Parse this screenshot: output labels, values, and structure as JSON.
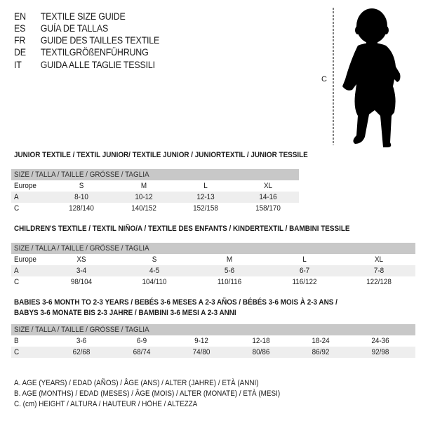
{
  "header": {
    "rows": [
      {
        "code": "EN",
        "title": "TEXTILE SIZE GUIDE"
      },
      {
        "code": "ES",
        "title": "GUÍA DE TALLAS"
      },
      {
        "code": "FR",
        "title": "GUIDE DES TAILLES TEXTILE"
      },
      {
        "code": "DE",
        "title": "TEXTILGRÖßENFÜHRUNG"
      },
      {
        "code": "IT",
        "title": "GUIDA ALLE TAGLIE TESSILI"
      }
    ]
  },
  "illustration": {
    "measure_label": "C",
    "icon": "baby-silhouette"
  },
  "tables": [
    {
      "title": "JUNIOR TEXTILE / TEXTIL JUNIOR/ TEXTILE JUNIOR / JUNIORTEXTIL / JUNIOR TESSILE",
      "title2": "",
      "header": "SIZE / TALLA / TAILLE / GRÖSSE / TAGLIA",
      "rows": [
        {
          "label": "Europe",
          "values": [
            "S",
            "M",
            "L",
            "XL"
          ]
        },
        {
          "label": "A",
          "values": [
            "8-10",
            "10-12",
            "12-13",
            "14-16"
          ]
        },
        {
          "label": "C",
          "values": [
            "128/140",
            "140/152",
            "152/158",
            "158/170"
          ]
        }
      ]
    },
    {
      "title": "CHILDREN'S TEXTILE / TEXTIL NIÑO/A / TEXTILE DES ENFANTS / KINDERTEXTIL / BAMBINI TESSILE",
      "title2": "",
      "header": "SIZE / TALLA / TAILLE / GRÖSSE / TAGLIA",
      "rows": [
        {
          "label": "Europe",
          "values": [
            "XS",
            "S",
            "M",
            "L",
            "XL"
          ]
        },
        {
          "label": "A",
          "values": [
            "3-4",
            "4-5",
            "5-6",
            "6-7",
            "7-8"
          ]
        },
        {
          "label": "C",
          "values": [
            "98/104",
            "104/110",
            "110/116",
            "116/122",
            "122/128"
          ]
        }
      ]
    },
    {
      "title": "BABIES 3-6 MONTH TO 2-3 YEARS / BEBÉS 3-6 MESES A 2-3 AÑOS / BÉBÉS 3-6 MOIS À 2-3 ANS /",
      "title2": "BABYS 3-6 MONATE BIS 2-3 JAHRE / BAMBINI 3-6 MESI A 2-3 ANNI",
      "header": "SIZE / TALLA / TAILLE / GRÖSSE / TAGLIA",
      "rows": [
        {
          "label": "B",
          "values": [
            "3-6",
            "6-9",
            "9-12",
            "12-18",
            "18-24",
            "24-36"
          ]
        },
        {
          "label": "C",
          "values": [
            "62/68",
            "68/74",
            "74/80",
            "80/86",
            "86/92",
            "92/98"
          ]
        }
      ]
    }
  ],
  "legend": [
    "A. AGE (YEARS) / EDAD (AÑOS) / ÂGE (ANS) / ALTER (JAHRE) / ETÀ (ANNI)",
    "B. AGE (MONTHS) / EDAD (MESES) / ÂGE (MOIS) / ALTER (MONATE) / ETÀ (MESI)",
    "C. (cm) HEIGHT / ALTURA / HAUTEUR / HÖHE / ALTEZZA"
  ],
  "colors": {
    "header_band": "#c8c8c8",
    "alt_row": "#eeeeee",
    "text": "#1a1a1a"
  }
}
